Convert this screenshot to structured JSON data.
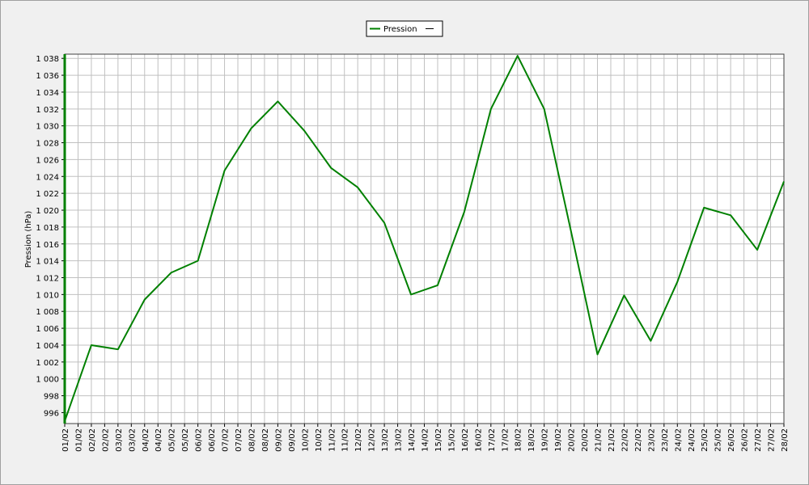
{
  "chart_data": {
    "type": "line",
    "y_label": "Pression (hPa)",
    "x": [
      1,
      2,
      3,
      4,
      5,
      6,
      7,
      8,
      9,
      10,
      11,
      12,
      13,
      14,
      15,
      16,
      17,
      18,
      19,
      20,
      21,
      22,
      23,
      24,
      25,
      26,
      27,
      28
    ],
    "series": [
      {
        "name": "Pression",
        "color": "#008000",
        "values": [
          995,
          1004,
          1003.5,
          1009.4,
          1012.6,
          1014,
          1024.7,
          1029.7,
          1032.9,
          1029.4,
          1025,
          1022.7,
          1018.5,
          1010,
          1011.1,
          1019.8,
          1032,
          1038.3,
          1032,
          1017.6,
          1002.9,
          1009.9,
          1004.5,
          1011.5,
          1020.3,
          1019.4,
          1015.3,
          1023.4
        ]
      }
    ],
    "xlim": [
      1,
      28
    ],
    "xticks": [
      {
        "value": 1,
        "label": "01/02"
      },
      {
        "value": 1.5,
        "label": "01/02"
      },
      {
        "value": 2,
        "label": "02/02"
      },
      {
        "value": 2.5,
        "label": "02/02"
      },
      {
        "value": 3,
        "label": "03/02"
      },
      {
        "value": 3.5,
        "label": "03/02"
      },
      {
        "value": 4,
        "label": "04/02"
      },
      {
        "value": 4.5,
        "label": "04/02"
      },
      {
        "value": 5,
        "label": "05/02"
      },
      {
        "value": 5.5,
        "label": "05/02"
      },
      {
        "value": 6,
        "label": "06/02"
      },
      {
        "value": 6.5,
        "label": "06/02"
      },
      {
        "value": 7,
        "label": "07/02"
      },
      {
        "value": 7.5,
        "label": "07/02"
      },
      {
        "value": 8,
        "label": "08/02"
      },
      {
        "value": 8.5,
        "label": "08/02"
      },
      {
        "value": 9,
        "label": "09/02"
      },
      {
        "value": 9.5,
        "label": "09/02"
      },
      {
        "value": 10,
        "label": "10/02"
      },
      {
        "value": 10.5,
        "label": "10/02"
      },
      {
        "value": 11,
        "label": "11/02"
      },
      {
        "value": 11.5,
        "label": "11/02"
      },
      {
        "value": 12,
        "label": "12/02"
      },
      {
        "value": 12.5,
        "label": "12/02"
      },
      {
        "value": 13,
        "label": "13/02"
      },
      {
        "value": 13.5,
        "label": "13/02"
      },
      {
        "value": 14,
        "label": "14/02"
      },
      {
        "value": 14.5,
        "label": "14/02"
      },
      {
        "value": 15,
        "label": "15/02"
      },
      {
        "value": 15.5,
        "label": "15/02"
      },
      {
        "value": 16,
        "label": "16/02"
      },
      {
        "value": 16.5,
        "label": "16/02"
      },
      {
        "value": 17,
        "label": "17/02"
      },
      {
        "value": 17.5,
        "label": "17/02"
      },
      {
        "value": 18,
        "label": "18/02"
      },
      {
        "value": 18.5,
        "label": "18/02"
      },
      {
        "value": 19,
        "label": "19/02"
      },
      {
        "value": 19.5,
        "label": "19/02"
      },
      {
        "value": 20,
        "label": "20/02"
      },
      {
        "value": 20.5,
        "label": "20/02"
      },
      {
        "value": 21,
        "label": "21/02"
      },
      {
        "value": 21.5,
        "label": "21/02"
      },
      {
        "value": 22,
        "label": "22/02"
      },
      {
        "value": 22.5,
        "label": "22/02"
      },
      {
        "value": 23,
        "label": "23/02"
      },
      {
        "value": 23.5,
        "label": "23/02"
      },
      {
        "value": 24,
        "label": "24/02"
      },
      {
        "value": 24.5,
        "label": "24/02"
      },
      {
        "value": 25,
        "label": "25/02"
      },
      {
        "value": 25.5,
        "label": "25/02"
      },
      {
        "value": 26,
        "label": "26/02"
      },
      {
        "value": 26.5,
        "label": "26/02"
      },
      {
        "value": 27,
        "label": "27/02"
      },
      {
        "value": 27.5,
        "label": "27/02"
      },
      {
        "value": 28,
        "label": "28/02"
      }
    ],
    "ylim": [
      994.7,
      1038.5
    ],
    "yticks": [
      996,
      998,
      {
        "value": 1000,
        "label": "1 000"
      },
      {
        "value": 1002,
        "label": "1 002"
      },
      {
        "value": 1004,
        "label": "1 004"
      },
      {
        "value": 1006,
        "label": "1 006"
      },
      {
        "value": 1008,
        "label": "1 008"
      },
      {
        "value": 1010,
        "label": "1 010"
      },
      {
        "value": 1012,
        "label": "1 012"
      },
      {
        "value": 1014,
        "label": "1 014"
      },
      {
        "value": 1016,
        "label": "1 016"
      },
      {
        "value": 1018,
        "label": "1 018"
      },
      {
        "value": 1020,
        "label": "1 020"
      },
      {
        "value": 1022,
        "label": "1 022"
      },
      {
        "value": 1024,
        "label": "1 024"
      },
      {
        "value": 1026,
        "label": "1 026"
      },
      {
        "value": 1028,
        "label": "1 028"
      },
      {
        "value": 1030,
        "label": "1 030"
      },
      {
        "value": 1032,
        "label": "1 032"
      },
      {
        "value": 1034,
        "label": "1 034"
      },
      {
        "value": 1036,
        "label": "1 036"
      },
      {
        "value": 1038,
        "label": "1 038"
      }
    ],
    "grid": true
  }
}
